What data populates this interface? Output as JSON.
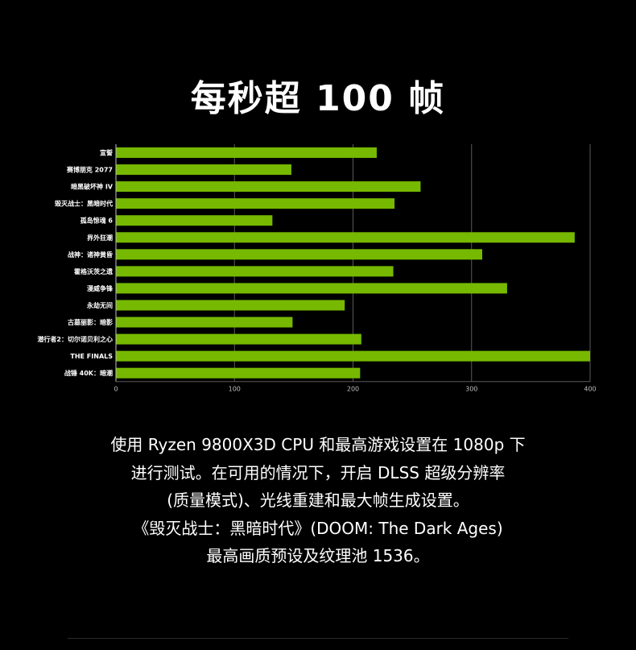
{
  "title": "每秒超 100 帧",
  "chart_data": {
    "type": "bar",
    "orientation": "horizontal",
    "categories": [
      "宣誓",
      "赛博朋克 2077",
      "暗黑破坏神 IV",
      "毁灭战士：黑暗时代",
      "孤岛惊魂 6",
      "界外狂潮",
      "战神：诸神黄昏",
      "霍格沃茨之遗",
      "漫威争锋",
      "永劫无间",
      "古墓丽影：暗影",
      "潜行者2：切尔诺贝利之心",
      "THE FINALS",
      "战锤 40K：暗潮"
    ],
    "values": [
      220,
      148,
      257,
      235,
      132,
      387,
      309,
      234,
      330,
      193,
      149,
      207,
      400,
      206
    ],
    "xlim": [
      0,
      400
    ],
    "xticks": [
      0,
      100,
      200,
      300,
      400
    ],
    "grid": true,
    "bar_color": "#76b900"
  },
  "caption_lines": [
    "使用 Ryzen 9800X3D CPU 和最高游戏设置在 1080p 下",
    "进行测试。在可用的情况下，开启 DLSS 超级分辨率",
    "(质量模式)、光线重建和最大帧生成设置。",
    "《毁灭战士：黑暗时代》(DOOM: The Dark Ages)",
    "最高画质预设及纹理池 1536。"
  ]
}
